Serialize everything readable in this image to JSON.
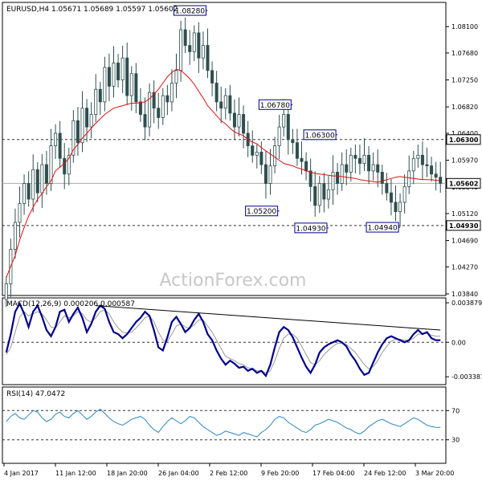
{
  "title": "EURUSD,H4  1.05671 1.05689 1.05597 1.05602",
  "watermark": "ActionForex.com",
  "colors": {
    "candle": "#2f4f4f",
    "ma": "#dd1111",
    "macd_line": "#00008b",
    "macd_signal": "#999999",
    "rsi_line": "#2e86c1",
    "background": "#ffffff",
    "frame": "#000000"
  },
  "chart_data": [
    {
      "type": "candlestick",
      "panel": "price",
      "ylim": [
        1.0384,
        1.0846
      ],
      "yticks": [
        "1.08100",
        "1.07680",
        "1.07250",
        "1.06820",
        "1.06400",
        "1.05970",
        "1.05540",
        "1.05120",
        "1.04690",
        "1.04270",
        "1.03840"
      ],
      "hlines": [
        1.063,
        1.0493
      ],
      "last_price": 1.05602,
      "price_boxes": [
        "1.06300",
        "1.05602",
        "1.04930"
      ],
      "annotations": [
        {
          "label": "1.08280",
          "value": 1.0828
        },
        {
          "label": "1.06780",
          "value": 1.0678
        },
        {
          "label": "1.06300",
          "value": 1.063
        },
        {
          "label": "1.05200",
          "value": 1.052
        },
        {
          "label": "1.04930",
          "value": 1.0493
        },
        {
          "label": "1.04940",
          "value": 1.0494
        }
      ],
      "xticks": [
        "4 Jan 2017",
        "11 Jan 12:00",
        "18 Jan 20:00",
        "26 Jan 04:00",
        "2 Feb 12:00",
        "9 Feb 20:00",
        "17 Feb 04:00",
        "24 Feb 12:00",
        "3 Mar 20:00"
      ],
      "close_series": [
        1.04,
        1.0455,
        1.0498,
        1.0528,
        1.056,
        1.0535,
        1.0582,
        1.0545,
        1.059,
        1.056,
        1.062,
        1.064,
        1.06,
        1.0575,
        1.0605,
        1.066,
        1.0625,
        1.068,
        1.065,
        1.067,
        1.071,
        1.069,
        1.0745,
        1.0715,
        1.0752,
        1.0725,
        1.076,
        1.07,
        1.0735,
        1.069,
        1.067,
        1.065,
        1.0705,
        1.068,
        1.0665,
        1.07,
        1.069,
        1.072,
        1.074,
        1.0805,
        1.078,
        1.077,
        1.08,
        1.076,
        1.078,
        1.074,
        1.072,
        1.069,
        1.068,
        1.07,
        1.0672,
        1.065,
        1.067,
        1.064,
        1.062,
        1.0605,
        1.061,
        1.059,
        1.056,
        1.0588,
        1.062,
        1.065,
        1.067,
        1.063,
        1.0625,
        1.06,
        1.0595,
        1.058,
        1.0555,
        1.0525,
        1.056,
        1.0535,
        1.055,
        1.0578,
        1.056,
        1.059,
        1.0578,
        1.0605,
        1.06,
        1.0592,
        1.0605,
        1.058,
        1.059,
        1.0578,
        1.056,
        1.0545,
        1.053,
        1.0515,
        1.053,
        1.0555,
        1.058,
        1.06,
        1.0605,
        1.059,
        1.0588,
        1.0575,
        1.057,
        1.05602
      ],
      "ma_series": [
        1.041,
        1.0428,
        1.0445,
        1.047,
        1.049,
        1.0508,
        1.0522,
        1.0535,
        1.0544,
        1.0555,
        1.0564,
        1.058,
        1.0586,
        1.0592,
        1.06,
        1.0614,
        1.0622,
        1.0632,
        1.064,
        1.0648,
        1.0656,
        1.0663,
        1.067,
        1.0675,
        1.068,
        1.0682,
        1.0684,
        1.0686,
        1.0688,
        1.0688,
        1.0689,
        1.069,
        1.0695,
        1.0702,
        1.071,
        1.072,
        1.073,
        1.0737,
        1.0742,
        1.074,
        1.0734,
        1.0727,
        1.0718,
        1.0707,
        1.0696,
        1.0684,
        1.0676,
        1.0668,
        1.066,
        1.0655,
        1.0648,
        1.0642,
        1.0639,
        1.0636,
        1.063,
        1.0626,
        1.0623,
        1.0617,
        1.0612,
        1.0607,
        1.0602,
        1.0597,
        1.0592,
        1.059,
        1.0588,
        1.0585,
        1.0583,
        1.058,
        1.0578,
        1.0576,
        1.0575,
        1.0574,
        1.0573,
        1.0572,
        1.0572,
        1.0571,
        1.057,
        1.0569,
        1.0568,
        1.0566,
        1.0565,
        1.0564,
        1.0563,
        1.0562,
        1.0564,
        1.0566,
        1.0568,
        1.057,
        1.0571,
        1.057,
        1.0569,
        1.0568,
        1.0567,
        1.0566,
        1.0566,
        1.0566,
        1.0565,
        1.0565
      ]
    },
    {
      "type": "line",
      "panel": "macd",
      "name": "MACD(12,26,9) 0.000206 0.000587",
      "ylim": [
        -0.004,
        0.0042
      ],
      "yticks": [
        "0.003879",
        "0.00",
        "-0.003387"
      ],
      "trendline": [
        0.0036,
        0.0012
      ],
      "macd": [
        -0.001,
        0.0008,
        0.003,
        0.0038,
        0.0028,
        0.0015,
        0.003,
        0.0036,
        0.0025,
        0.0012,
        0.0006,
        0.0015,
        0.003,
        0.0032,
        0.002,
        0.0028,
        0.0034,
        0.0024,
        0.001,
        0.0018,
        0.003,
        0.0036,
        0.0033,
        0.002,
        0.001,
        0.0008,
        0.0004,
        0.0008,
        0.0014,
        0.002,
        0.0024,
        0.003,
        0.0026,
        0.0012,
        -0.0005,
        -0.0008,
        0.0005,
        0.002,
        0.0025,
        0.0018,
        0.001,
        0.0014,
        0.0022,
        0.0028,
        0.002,
        0.0008,
        0.0002,
        -0.0008,
        -0.0016,
        -0.0022,
        -0.0018,
        -0.0021,
        -0.0025,
        -0.0024,
        -0.0028,
        -0.0026,
        -0.003,
        -0.0028,
        -0.0033,
        -0.0022,
        -0.0005,
        0.001,
        0.0015,
        0.0012,
        0.0005,
        -0.0005,
        -0.0015,
        -0.0024,
        -0.003,
        -0.0022,
        -0.001,
        -0.0005,
        -0.0002,
        0.0,
        0.0002,
        0.0,
        -0.0004,
        -0.0012,
        -0.0018,
        -0.0026,
        -0.0032,
        -0.003,
        -0.002,
        -0.001,
        -0.0002,
        0.0004,
        0.0006,
        0.0004,
        0.0002,
        0.0,
        0.0002,
        0.0008,
        0.0012,
        0.0008,
        0.001,
        0.0004,
        0.0002,
        0.0002
      ],
      "signal": [
        -0.0012,
        -0.0005,
        0.001,
        0.0025,
        0.003,
        0.0026,
        0.0028,
        0.003,
        0.0028,
        0.0022,
        0.0015,
        0.0014,
        0.002,
        0.0026,
        0.0024,
        0.0026,
        0.003,
        0.0028,
        0.0022,
        0.002,
        0.0024,
        0.003,
        0.0032,
        0.0028,
        0.002,
        0.0014,
        0.001,
        0.0009,
        0.001,
        0.0014,
        0.0019,
        0.0024,
        0.0026,
        0.002,
        0.001,
        0.0002,
        0.0001,
        0.0008,
        0.0016,
        0.0018,
        0.0015,
        0.0014,
        0.0017,
        0.0022,
        0.0022,
        0.0016,
        0.001,
        0.0002,
        -0.0006,
        -0.0014,
        -0.0016,
        -0.0018,
        -0.0021,
        -0.0022,
        -0.0025,
        -0.0026,
        -0.0028,
        -0.0028,
        -0.003,
        -0.0028,
        -0.0018,
        -0.0006,
        0.0004,
        0.0008,
        0.0008,
        0.0004,
        -0.0004,
        -0.0012,
        -0.002,
        -0.0022,
        -0.0018,
        -0.0012,
        -0.0008,
        -0.0004,
        -0.0001,
        -0.0001,
        -0.0002,
        -0.0006,
        -0.001,
        -0.0016,
        -0.0022,
        -0.0026,
        -0.0024,
        -0.0018,
        -0.001,
        -0.0004,
        0.0001,
        0.0003,
        0.0003,
        0.0002,
        0.0002,
        0.0004,
        0.0008,
        0.0008,
        0.0009,
        0.0007,
        0.0006,
        0.0006
      ]
    },
    {
      "type": "line",
      "panel": "rsi",
      "name": "RSI(14) 47.0472",
      "ylim": [
        0,
        100
      ],
      "yticks": [
        "70",
        "30"
      ],
      "levels": [
        70,
        30
      ],
      "values": [
        55,
        62,
        66,
        60,
        58,
        64,
        70,
        68,
        60,
        55,
        58,
        65,
        68,
        62,
        60,
        66,
        70,
        64,
        58,
        62,
        68,
        72,
        66,
        60,
        55,
        52,
        50,
        54,
        58,
        60,
        62,
        58,
        50,
        44,
        40,
        48,
        55,
        60,
        56,
        52,
        56,
        62,
        60,
        54,
        48,
        44,
        40,
        36,
        38,
        42,
        40,
        38,
        36,
        40,
        38,
        36,
        34,
        40,
        44,
        50,
        58,
        62,
        60,
        54,
        50,
        46,
        42,
        40,
        44,
        50,
        52,
        55,
        58,
        56,
        54,
        50,
        46,
        44,
        40,
        38,
        42,
        48,
        52,
        56,
        58,
        55,
        52,
        50,
        48,
        52,
        56,
        60,
        58,
        54,
        50,
        48,
        47,
        47.05
      ]
    }
  ]
}
